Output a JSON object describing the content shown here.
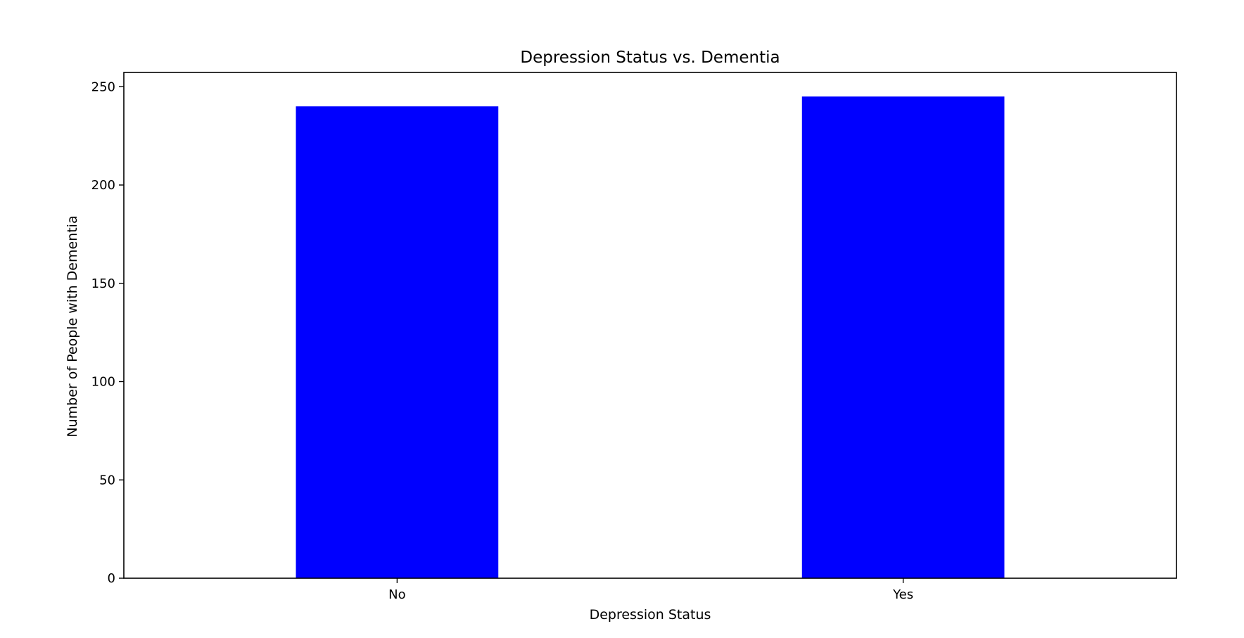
{
  "chart_data": {
    "type": "bar",
    "title": "Depression Status vs. Dementia",
    "xlabel": "Depression Status",
    "ylabel": "Number of People with Dementia",
    "categories": [
      "No",
      "Yes"
    ],
    "values": [
      240,
      245
    ],
    "ylim": [
      0,
      257.25
    ],
    "yticks": [
      0,
      50,
      100,
      150,
      200,
      250
    ],
    "bar_color": "#0000ff",
    "grid": false,
    "legend": "none"
  }
}
